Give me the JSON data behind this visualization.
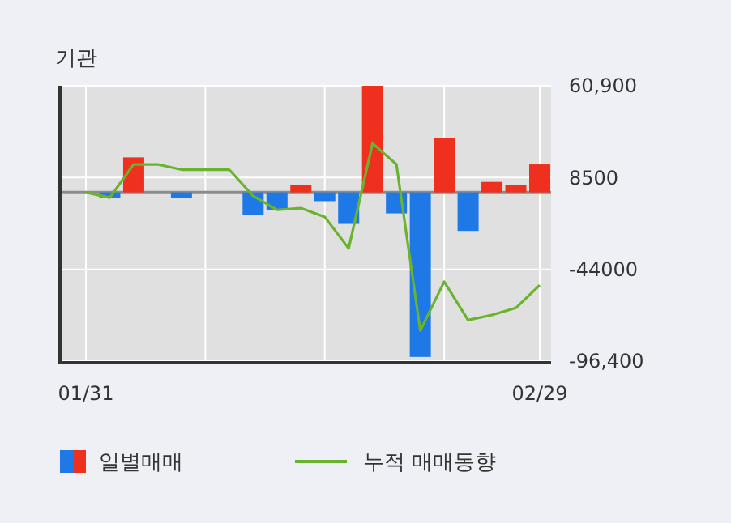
{
  "chart_data": {
    "type": "bar",
    "title": "기관",
    "categories": [
      "01/31",
      null,
      null,
      null,
      null,
      null,
      null,
      null,
      null,
      null,
      null,
      null,
      null,
      null,
      null,
      null,
      null,
      null,
      null,
      "02/29"
    ],
    "series": [
      {
        "name": "일별매매",
        "colors": [
          "#f0301e",
          "#1e78e6",
          "#f0301e",
          "#f0301e",
          "#1e78e6",
          "#f0301e",
          "#f0301e",
          "#1e78e6",
          "#1e78e6",
          "#f0301e",
          "#1e78e6",
          "#1e78e6",
          "#f0301e",
          "#1e78e6",
          "#1e78e6",
          "#f0301e",
          "#1e78e6",
          "#f0301e",
          "#f0301e",
          "#f0301e"
        ],
        "values": [
          0,
          -3000,
          20000,
          0,
          -3000,
          0,
          0,
          -13000,
          -10000,
          4000,
          -5000,
          -18000,
          60900,
          -12000,
          -94000,
          31000,
          -22000,
          6000,
          4000,
          16000
        ]
      },
      {
        "name": "누적 매매동향",
        "type": "line",
        "color": "#6ab42d",
        "values": [
          0,
          -3000,
          16000,
          16000,
          13000,
          13000,
          13000,
          -2000,
          -10000,
          -9000,
          -14000,
          -32000,
          28000,
          16000,
          -79000,
          -51000,
          -73000,
          -70000,
          -66000,
          -53000
        ]
      }
    ],
    "ylim": [
      -96400,
      60900
    ],
    "yticks": [
      {
        "value": 60900,
        "label": "60,900"
      },
      8500,
      -44000,
      {
        "value": -96400,
        "label": "-96,400"
      }
    ],
    "ref_lines": [
      {
        "axis": "y",
        "value": 0,
        "color": "#8c8c8c"
      }
    ],
    "grid": true,
    "legend": "bottom"
  }
}
